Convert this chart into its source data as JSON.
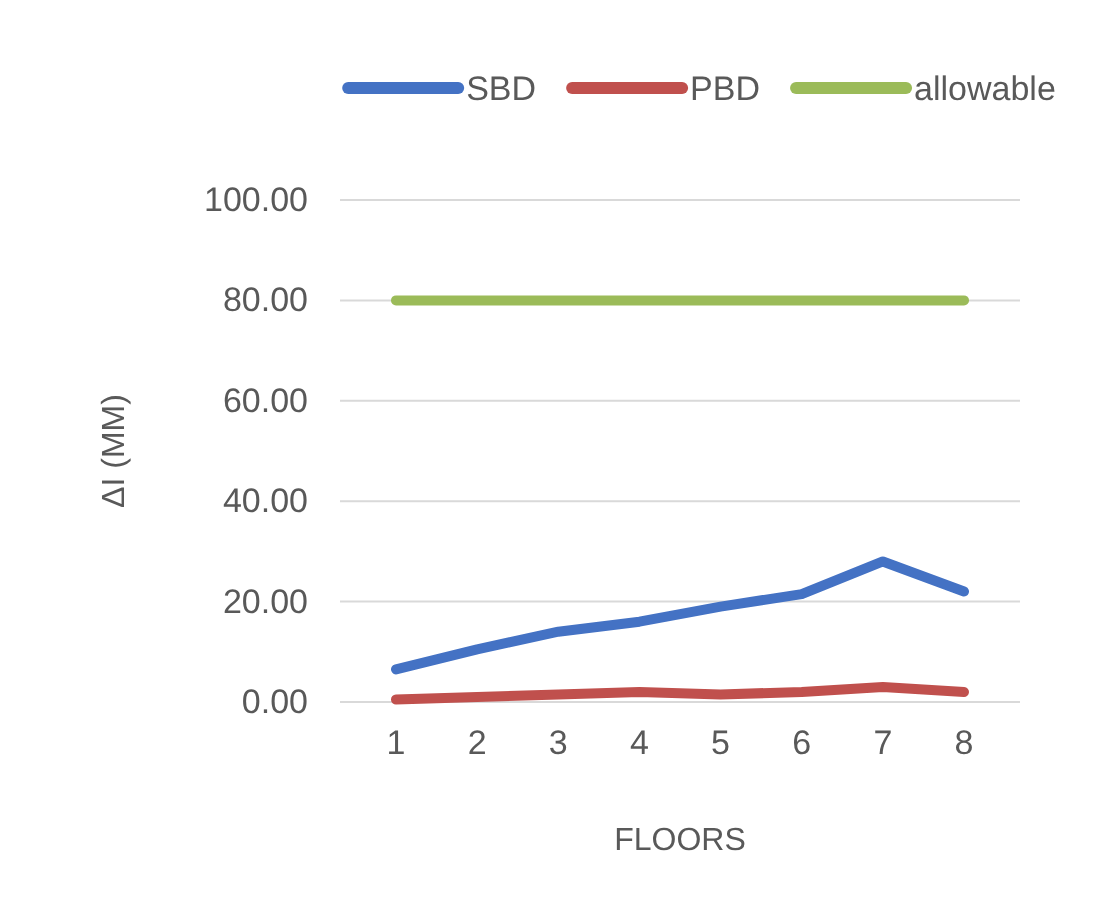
{
  "chart_data": {
    "type": "line",
    "xlabel": "FLOORS",
    "ylabel": "ΔI (MM)",
    "categories": [
      "1",
      "2",
      "3",
      "4",
      "5",
      "6",
      "7",
      "8"
    ],
    "series": [
      {
        "name": "SBD",
        "color": "#4472c4",
        "values": [
          6.5,
          10.5,
          14,
          16,
          19,
          21.5,
          28,
          22
        ]
      },
      {
        "name": "PBD",
        "color": "#c0504d",
        "values": [
          0.5,
          1,
          1.5,
          2,
          1.5,
          2,
          3,
          2
        ]
      },
      {
        "name": "allowable",
        "color": "#9bbb59",
        "values": [
          80,
          80,
          80,
          80,
          80,
          80,
          80,
          80
        ]
      }
    ],
    "ylim": [
      0,
      100
    ],
    "yticks": [
      {
        "value": 0,
        "label": "0.00"
      },
      {
        "value": 20,
        "label": "20.00"
      },
      {
        "value": 40,
        "label": "40.00"
      },
      {
        "value": 60,
        "label": "60.00"
      },
      {
        "value": 80,
        "label": "80.00"
      },
      {
        "value": 100,
        "label": "100.00"
      }
    ],
    "grid": "y",
    "legend": "top",
    "line_style": "solid",
    "marker": "none"
  }
}
